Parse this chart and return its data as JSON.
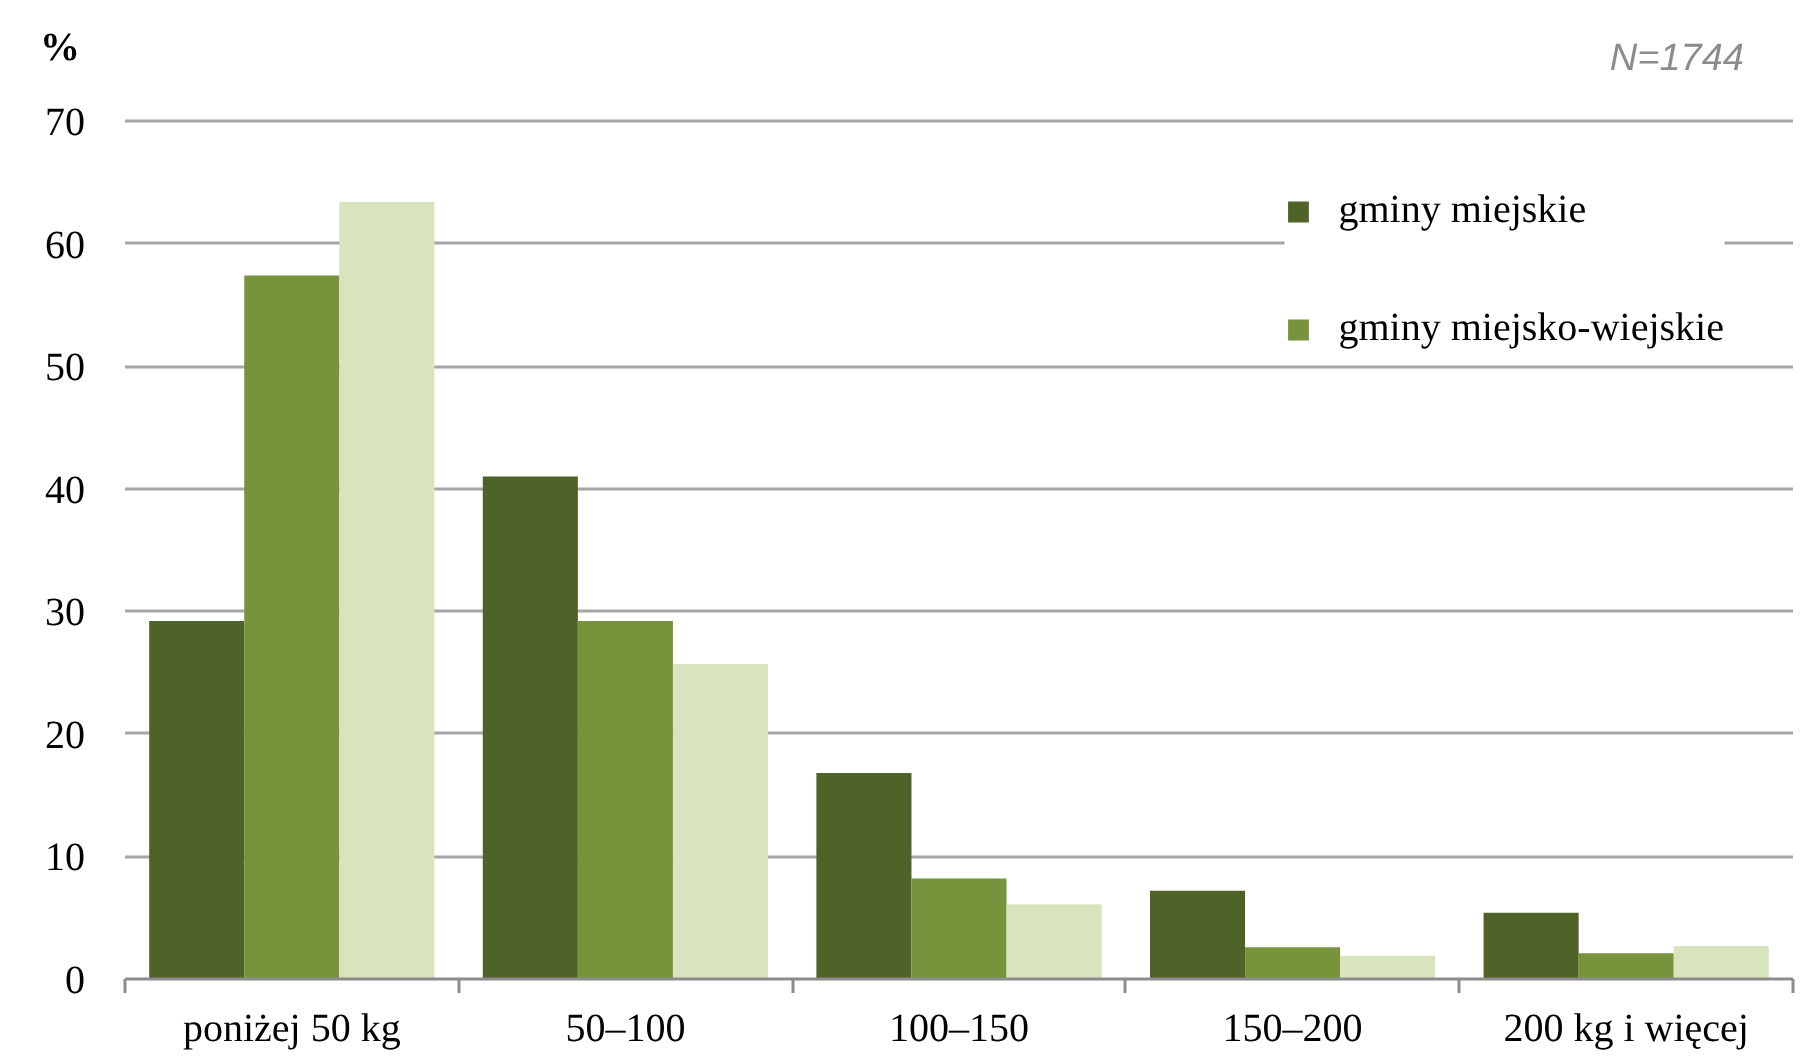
{
  "chart_data": {
    "type": "bar",
    "ylabel": "%",
    "annotations": [
      "N=1744"
    ],
    "categories": [
      "poniżej 50 kg",
      "50–100",
      "100–150",
      "150–200",
      "200 kg i więcej"
    ],
    "series": [
      {
        "name": "gminy miejskie",
        "color": "#4f6228",
        "values": [
          29.2,
          41.0,
          16.8,
          7.2,
          5.4
        ]
      },
      {
        "name": "gminy miejsko-wiejskie",
        "color": "#77933c",
        "values": [
          57.4,
          29.2,
          8.2,
          2.6,
          2.1
        ]
      },
      {
        "color": "#d7e4bd",
        "values": [
          63.4,
          25.7,
          6.1,
          1.9,
          2.7
        ]
      }
    ],
    "ylim": [
      0,
      70
    ],
    "yticks": [
      0,
      10,
      20,
      30,
      40,
      50,
      60,
      70
    ],
    "grid": "y",
    "legend": "top right"
  }
}
